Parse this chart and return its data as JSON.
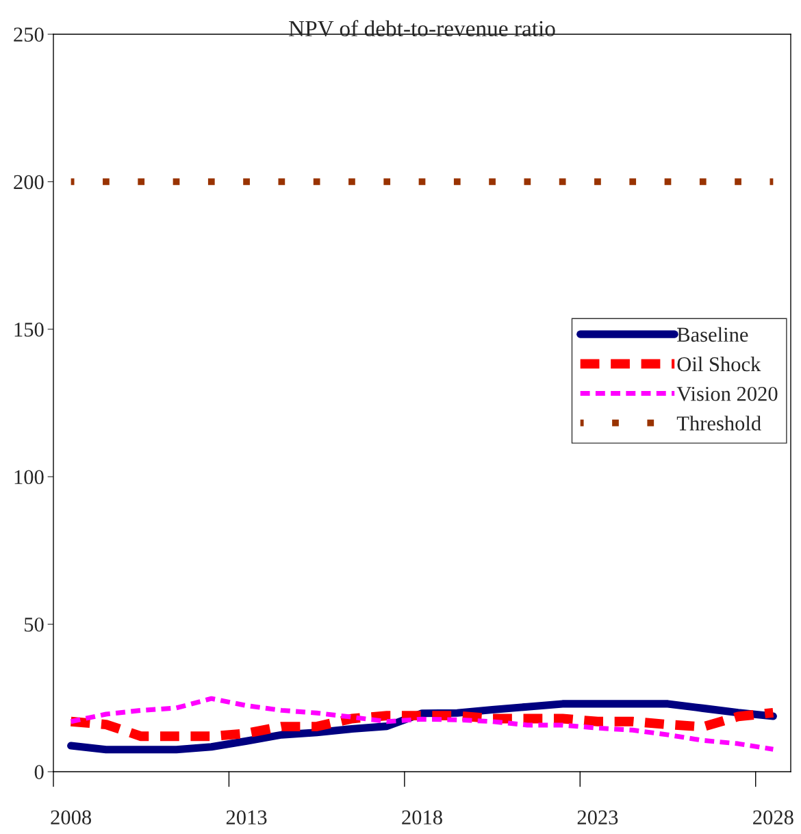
{
  "chart_data": {
    "type": "line",
    "title": "NPV of debt-to-revenue ratio",
    "categories": [
      "2008",
      null,
      null,
      null,
      null,
      "2013",
      null,
      null,
      null,
      null,
      "2018",
      null,
      null,
      null,
      null,
      "2023",
      null,
      null,
      null,
      null,
      "2028"
    ],
    "series": [
      {
        "name": "Baseline",
        "color": "#000080",
        "line_style": "solid",
        "values": [
          8.8,
          7.5,
          7.5,
          7.5,
          8.4,
          10.4,
          12.5,
          13.3,
          14.5,
          15.4,
          19.8,
          19.9,
          21,
          22,
          23,
          23,
          23,
          23,
          21.5,
          20,
          18.8
        ]
      },
      {
        "name": "Oil Shock",
        "color": "#ff0000",
        "line_style": "dashed",
        "values": [
          17,
          16,
          12,
          12,
          12,
          13,
          15.3,
          15.3,
          18,
          19,
          19,
          19,
          18,
          18,
          18,
          17,
          17,
          16,
          15.2,
          18.7,
          20
        ]
      },
      {
        "name": "Vision 2020",
        "color": "#ff00ff",
        "line_style": "dashed",
        "values": [
          17,
          19.5,
          20.8,
          21.6,
          24.8,
          22.4,
          20.8,
          19.9,
          18.5,
          17,
          17.8,
          17.6,
          17,
          15.8,
          15.8,
          14.8,
          14.1,
          12.5,
          10.6,
          9.5,
          7.6
        ]
      },
      {
        "name": "Threshold",
        "color": "#993300",
        "line_style": "dotted",
        "values": [
          200,
          200,
          200,
          200,
          200,
          200,
          200,
          200,
          200,
          200,
          200,
          200,
          200,
          200,
          200,
          200,
          200,
          200,
          200,
          200,
          200
        ]
      }
    ],
    "ylim": [
      0,
      250
    ],
    "yticks": [
      0,
      50,
      100,
      150,
      200,
      250
    ],
    "grid": false,
    "legend": "right",
    "marker": "none"
  }
}
